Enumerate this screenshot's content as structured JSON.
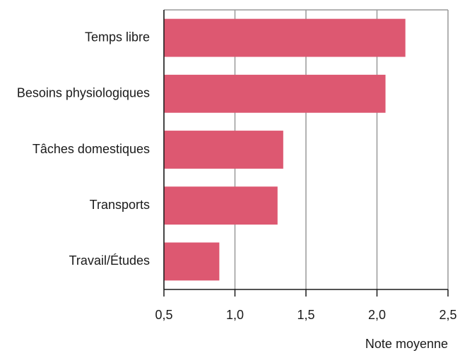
{
  "chart_data": {
    "type": "barh",
    "categories": [
      "Temps libre",
      "Besoins physiologiques",
      "Tâches domestiques",
      "Transports",
      "Travail/Études"
    ],
    "values": [
      2.2,
      2.06,
      1.34,
      1.3,
      0.89
    ],
    "color": "#dd5871",
    "x_label": "Note moyenne",
    "xlim": [
      0.5,
      2.5
    ],
    "xticks": [
      {
        "value": 0.5,
        "label": "0,5"
      },
      {
        "value": 1.0,
        "label": "1,0"
      },
      {
        "value": 1.5,
        "label": "1,5"
      },
      {
        "value": 2.0,
        "label": "2,0"
      },
      {
        "value": 2.5,
        "label": "2,5"
      }
    ],
    "grid": true
  }
}
